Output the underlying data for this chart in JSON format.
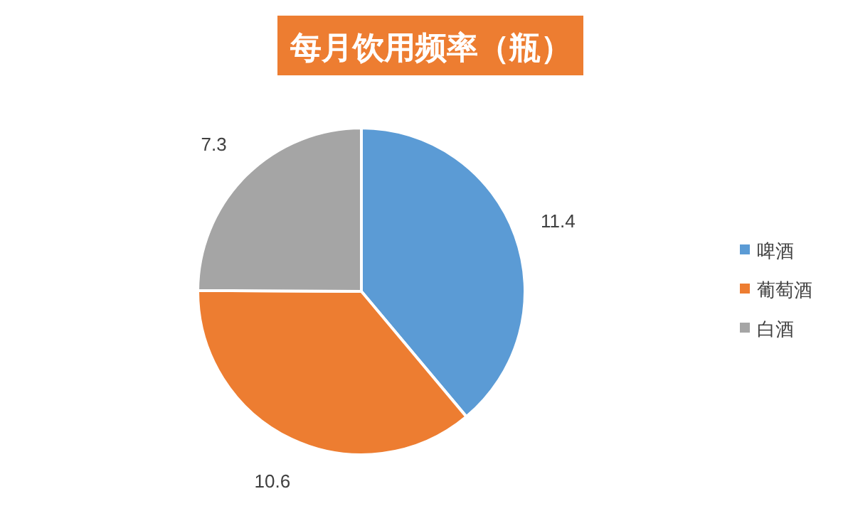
{
  "chart_data": {
    "type": "pie",
    "title": "每月饮用频率（瓶）",
    "categories": [
      "啤酒",
      "葡萄酒",
      "白酒"
    ],
    "values": [
      11.4,
      10.6,
      7.3
    ],
    "colors": [
      "#5b9bd5",
      "#ed7d31",
      "#a5a5a5"
    ],
    "data_labels": true,
    "legend": "right"
  }
}
